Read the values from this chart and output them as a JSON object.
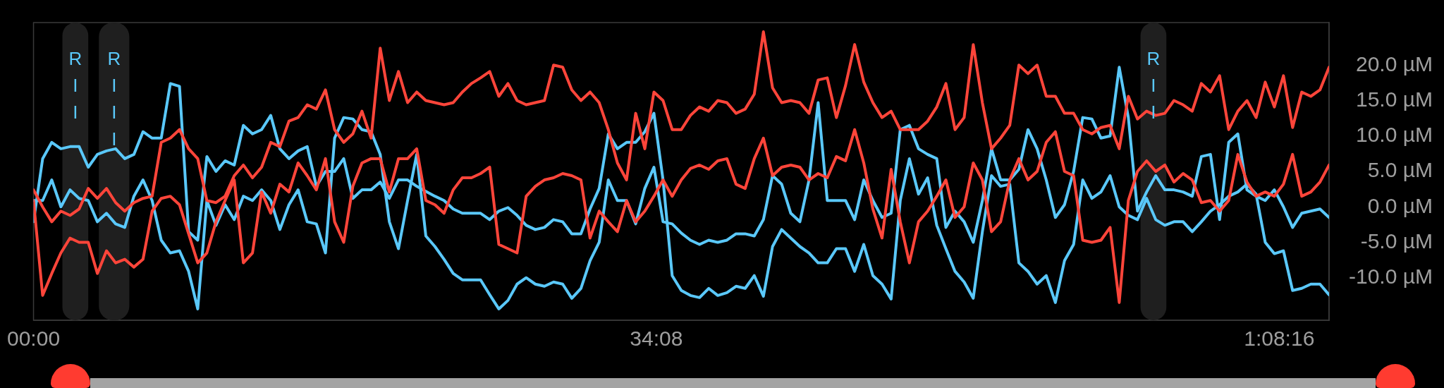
{
  "chart_data": {
    "type": "line",
    "marker": "none",
    "x": [
      0,
      30,
      60,
      90,
      120,
      150,
      180,
      210,
      240,
      270,
      300,
      330,
      360,
      390,
      420,
      450,
      480,
      510,
      540,
      570,
      600,
      630,
      660,
      690,
      720,
      750,
      780,
      810,
      840,
      870,
      900,
      930,
      960,
      990,
      1020,
      1050,
      1080,
      1110,
      1140,
      1170,
      1200,
      1230,
      1260,
      1290,
      1320,
      1350,
      1380,
      1410,
      1440,
      1470,
      1500,
      1530,
      1560,
      1590,
      1620,
      1650,
      1680,
      1710,
      1740,
      1770,
      1800,
      1830,
      1860,
      1890,
      1920,
      1950,
      1980,
      2010,
      2040,
      2070,
      2100,
      2130,
      2160,
      2190,
      2220,
      2250,
      2280,
      2310,
      2340,
      2370,
      2400,
      2430,
      2460,
      2490,
      2520,
      2550,
      2580,
      2610,
      2640,
      2670,
      2700,
      2730,
      2760,
      2790,
      2820,
      2850,
      2880,
      2910,
      2940,
      2970,
      3000,
      3030,
      3060,
      3090,
      3120,
      3150,
      3180,
      3210,
      3240,
      3270,
      3300,
      3330,
      3360,
      3390,
      3420,
      3450,
      3480,
      3510,
      3540,
      3570,
      3600,
      3630,
      3660,
      3690,
      3720,
      3750,
      3780,
      3810,
      3840,
      3870,
      3900,
      3930,
      3960,
      3990,
      4020,
      4050,
      4080,
      4110,
      4140,
      4170,
      4200,
      4230,
      4260
    ],
    "xlim": [
      0,
      4260
    ],
    "xticks": [
      {
        "value": 0,
        "label": "00:00"
      },
      {
        "value": 2048,
        "label": "34:08"
      },
      {
        "value": 4096,
        "label": "1:08:16"
      }
    ],
    "ylim": [
      -16,
      26
    ],
    "yticks": [
      {
        "value": -10,
        "label": "-10.0 µM"
      },
      {
        "value": -5,
        "label": "-5.0 µM"
      },
      {
        "value": 0,
        "label": "0.0 µM"
      },
      {
        "value": 5,
        "label": "5.0 µM"
      },
      {
        "value": 10,
        "label": "10.0 µM"
      },
      {
        "value": 15,
        "label": "15.0 µM"
      },
      {
        "value": 20,
        "label": "20.0 µM"
      }
    ],
    "bands": [
      {
        "axis": "x",
        "from": 95,
        "to": 180,
        "label": "RII",
        "color": "#1f1f1f"
      },
      {
        "axis": "x",
        "from": 215,
        "to": 315,
        "label": "RIII",
        "color": "#1f1f1f"
      },
      {
        "axis": "x",
        "from": 3640,
        "to": 3725,
        "label": "RII",
        "color": "#1f1f1f"
      }
    ],
    "series": [
      {
        "color": "#ff453a",
        "values": [
          2.4,
          0.0,
          -2.1,
          -0.6,
          -1.2,
          -0.3,
          2.6,
          1.2,
          2.6,
          0.6,
          -0.6,
          0.6,
          1.2,
          1.5,
          9.1,
          9.7,
          10.9,
          8.2,
          6.8,
          0.9,
          0.6,
          1.5,
          4.4,
          5.9,
          4.1,
          5.6,
          9.1,
          8.5,
          12.1,
          12.6,
          14.4,
          13.8,
          16.5,
          10.9,
          9.1,
          10.3,
          13.5,
          9.7,
          22.4,
          15.0,
          19.1,
          14.7,
          16.2,
          15.0,
          14.7,
          14.4,
          14.7,
          16.2,
          17.4,
          18.2,
          19.1,
          15.6,
          17.4,
          15.0,
          14.4,
          14.7,
          15.0,
          20.0,
          19.7,
          16.5,
          15.0,
          16.2,
          14.7,
          10.9,
          6.2,
          3.8,
          13.2,
          8.2,
          16.2,
          15.0,
          10.9,
          10.9,
          12.9,
          14.1,
          13.5,
          15.0,
          14.7,
          13.2,
          13.8,
          15.9,
          24.7,
          16.8,
          14.7,
          15.0,
          14.7,
          13.2,
          17.9,
          18.2,
          12.6,
          17.1,
          22.9,
          17.6,
          14.7,
          12.6,
          13.5,
          10.9,
          10.9,
          10.9,
          12.1,
          14.1,
          17.4,
          10.9,
          12.6,
          22.9,
          14.7,
          8.2,
          9.7,
          11.5,
          20.0,
          18.8,
          20.0,
          15.6,
          15.6,
          13.2,
          13.2,
          10.9,
          10.3,
          11.2,
          11.5,
          8.2,
          15.6,
          12.4,
          13.5,
          12.9,
          13.2,
          15.0,
          14.4,
          13.5,
          17.4,
          16.2,
          18.5,
          10.9,
          13.5,
          15.0,
          12.6,
          17.6,
          14.1,
          18.5,
          11.2,
          16.2,
          15.6,
          16.5,
          19.7
        ]
      },
      {
        "color": "#ff453a",
        "values": [
          0.9,
          -12.5,
          -9.4,
          -6.5,
          -4.4,
          -5.0,
          -5.0,
          -9.4,
          -6.2,
          -7.9,
          -7.4,
          -8.5,
          -7.4,
          -0.6,
          1.2,
          1.5,
          0.3,
          -3.8,
          -7.9,
          -6.5,
          -2.1,
          0.9,
          3.8,
          -7.9,
          -6.5,
          2.1,
          -0.9,
          3.2,
          2.1,
          6.2,
          4.4,
          2.4,
          6.8,
          -2.1,
          -5.0,
          2.9,
          6.2,
          6.8,
          6.8,
          2.1,
          6.8,
          6.8,
          8.2,
          0.9,
          0.3,
          -0.9,
          2.4,
          4.1,
          4.1,
          4.7,
          5.6,
          -5.3,
          -5.9,
          -6.5,
          1.5,
          2.9,
          3.8,
          4.1,
          4.7,
          4.4,
          3.8,
          -4.4,
          -0.6,
          -2.1,
          -3.5,
          0.9,
          -2.1,
          -0.6,
          1.5,
          3.8,
          1.5,
          3.8,
          5.4,
          5.9,
          5.3,
          6.5,
          6.8,
          3.2,
          2.6,
          6.8,
          9.7,
          4.4,
          5.6,
          5.9,
          5.6,
          3.8,
          4.7,
          4.1,
          7.1,
          6.5,
          10.9,
          6.2,
          -0.3,
          -4.4,
          5.3,
          -2.1,
          -7.9,
          -2.1,
          -0.6,
          1.5,
          3.8,
          -1.5,
          0.0,
          6.2,
          3.8,
          -3.5,
          -2.1,
          3.8,
          6.8,
          3.8,
          5.0,
          9.1,
          10.6,
          5.0,
          4.4,
          -4.7,
          -5.0,
          -4.7,
          -2.9,
          -13.5,
          0.9,
          5.0,
          6.5,
          5.0,
          5.9,
          3.5,
          4.7,
          3.8,
          0.6,
          0.9,
          -0.6,
          0.9,
          7.4,
          3.5,
          1.5,
          2.1,
          1.5,
          3.2,
          7.4,
          1.5,
          2.1,
          3.5,
          5.9
        ]
      },
      {
        "color": "#5ac8fa",
        "values": [
          -2.1,
          6.8,
          9.1,
          8.2,
          8.5,
          8.5,
          5.6,
          7.4,
          7.9,
          8.2,
          6.8,
          7.4,
          10.6,
          9.7,
          9.7,
          17.4,
          17.0,
          -3.5,
          -4.7,
          7.1,
          5.0,
          6.5,
          5.9,
          11.5,
          10.3,
          10.9,
          12.9,
          8.2,
          6.8,
          7.9,
          8.5,
          2.9,
          5.0,
          5.0,
          6.8,
          1.2,
          2.4,
          2.4,
          3.5,
          1.2,
          3.8,
          3.8,
          2.9,
          2.2,
          1.5,
          0.9,
          -0.3,
          -0.9,
          -0.9,
          -0.9,
          -1.8,
          -0.6,
          -0.1,
          -1.2,
          -2.6,
          -3.2,
          -2.9,
          -1.8,
          -2.1,
          -3.8,
          -3.8,
          -0.3,
          2.6,
          10.3,
          8.2,
          9.1,
          9.1,
          10.6,
          13.2,
          3.8,
          -9.7,
          -11.8,
          -12.5,
          -12.8,
          -11.5,
          -12.5,
          -12.1,
          -11.2,
          -11.5,
          -9.7,
          -12.6,
          -5.6,
          -3.2,
          -4.4,
          -5.6,
          -6.5,
          -7.9,
          -7.9,
          -5.9,
          -5.9,
          -9.1,
          -5.3,
          -9.7,
          -10.9,
          -13.0,
          0.9,
          6.8,
          1.8,
          4.1,
          -2.6,
          -5.9,
          -9.1,
          -10.6,
          -12.9,
          -3.5,
          4.4,
          2.9,
          3.2,
          -7.9,
          -9.1,
          -10.9,
          -9.7,
          -13.5,
          -7.6,
          -5.3,
          3.8,
          1.2,
          2.1,
          4.4,
          0.0,
          -1.2,
          -1.8,
          1.2,
          -1.8,
          -2.6,
          -2.1,
          -2.1,
          -3.5,
          -2.1,
          -0.6,
          0.3,
          1.5,
          2.1,
          3.2,
          1.8,
          -5.0,
          -6.6,
          -6.2,
          -11.8,
          -11.5,
          -10.9,
          -10.9,
          -12.4
        ]
      },
      {
        "color": "#5ac8fa",
        "values": [
          0.9,
          0.9,
          3.8,
          0.0,
          2.4,
          1.2,
          0.9,
          -2.1,
          -0.9,
          -2.4,
          -2.9,
          1.5,
          3.8,
          0.9,
          -4.7,
          -6.5,
          -6.2,
          -9.1,
          -14.4,
          0.9,
          -2.6,
          0.3,
          -1.8,
          1.5,
          0.9,
          2.4,
          0.9,
          -3.2,
          0.3,
          2.4,
          -2.1,
          -2.4,
          -6.5,
          9.7,
          12.6,
          12.4,
          10.9,
          10.6,
          7.4,
          -2.1,
          -5.9,
          0.9,
          7.4,
          -4.1,
          -5.6,
          -7.4,
          -9.4,
          -10.3,
          -10.3,
          -10.3,
          -12.4,
          -14.4,
          -13.2,
          -10.9,
          -10.0,
          -10.9,
          -11.2,
          -10.6,
          -10.9,
          -12.9,
          -11.5,
          -7.6,
          -5.0,
          3.8,
          0.9,
          0.9,
          -2.4,
          2.6,
          5.6,
          -2.1,
          -2.4,
          -3.7,
          -4.7,
          -5.3,
          -4.7,
          -5.0,
          -4.7,
          -3.8,
          -3.8,
          -4.1,
          -1.8,
          4.4,
          3.2,
          -0.9,
          -2.1,
          3.8,
          14.7,
          0.9,
          0.9,
          0.9,
          -1.8,
          3.8,
          0.9,
          -1.5,
          -0.9,
          10.9,
          11.5,
          8.2,
          7.4,
          6.8,
          -2.9,
          -0.6,
          -2.1,
          -5.0,
          0.9,
          8.2,
          3.8,
          3.8,
          5.3,
          10.9,
          8.2,
          3.8,
          -1.5,
          0.3,
          5.0,
          12.6,
          12.4,
          9.7,
          10.0,
          19.7,
          12.6,
          -0.6,
          2.1,
          4.4,
          2.4,
          2.4,
          2.1,
          1.5,
          7.1,
          7.4,
          -1.8,
          9.1,
          10.3,
          2.4,
          1.5,
          0.9,
          2.4,
          0.0,
          -2.9,
          -0.9,
          -0.6,
          -0.3,
          -1.5
        ]
      }
    ]
  }
}
